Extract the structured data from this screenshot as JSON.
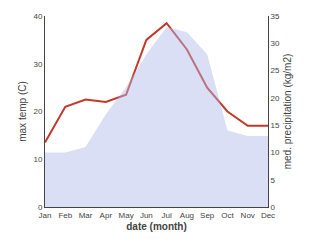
{
  "chart_data": {
    "type": "line",
    "xlabel": "date (month)",
    "ylabel": "max temp (C)",
    "y2label": "med. precipitation (kg/m2)",
    "categories": [
      "Jan",
      "Feb",
      "Mar",
      "Apr",
      "May",
      "Jun",
      "Jul",
      "Aug",
      "Sep",
      "Oct",
      "Nov",
      "Dec"
    ],
    "series": [
      {
        "type": "area",
        "axis": "y2",
        "color": "#b0b8e8",
        "values": [
          10.0,
          10.0,
          11.0,
          17.0,
          22.0,
          28.0,
          33.0,
          32.0,
          28.0,
          14.0,
          13.0,
          13.0
        ]
      },
      {
        "type": "line",
        "color": "#c0392b",
        "values": [
          13.5,
          21.0,
          22.5,
          22.0,
          23.5,
          35.0,
          38.5,
          33.0,
          25.0,
          20.0,
          17.0,
          17.0
        ]
      }
    ],
    "ylim": [
      0,
      40
    ],
    "yticks": [
      0,
      10,
      20,
      30,
      40
    ],
    "y2lim": [
      0,
      35
    ],
    "y2ticks": [
      0,
      5,
      10,
      15,
      20,
      25,
      30,
      35
    ],
    "grid": false
  }
}
